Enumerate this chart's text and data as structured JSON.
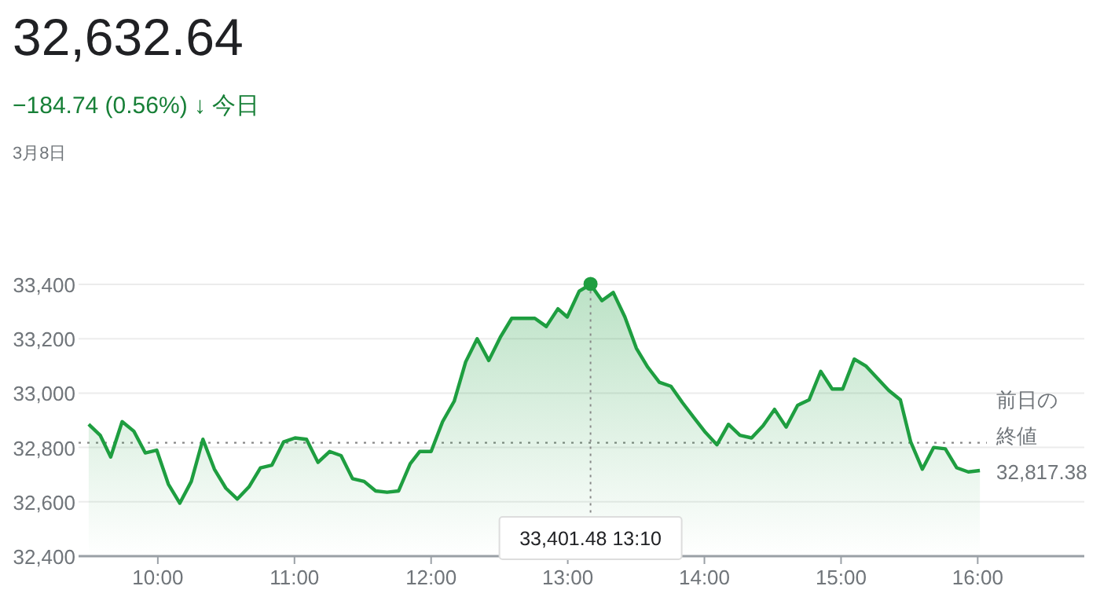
{
  "chart_data": {
    "type": "area",
    "title": "32,632.64",
    "subtitle": "−184.74 (0.56%) ↓ 今日",
    "annotations": [
      "3月8日",
      {
        "text": "33,401.48 13:10",
        "x": 13.1667,
        "y": 33401.48
      }
    ],
    "x": [
      9.494,
      9.578,
      9.655,
      9.739,
      9.824,
      9.908,
      9.992,
      10.077,
      10.161,
      10.245,
      10.33,
      10.414,
      10.498,
      10.582,
      10.667,
      10.751,
      10.835,
      10.92,
      11.004,
      11.088,
      11.172,
      11.257,
      11.341,
      11.425,
      11.51,
      11.594,
      11.678,
      11.762,
      11.847,
      11.916,
      12.0,
      12.084,
      12.169,
      12.253,
      12.337,
      12.422,
      12.506,
      12.59,
      12.759,
      12.843,
      12.928,
      12.996,
      13.084,
      13.1667,
      13.25,
      13.333,
      13.418,
      13.502,
      13.586,
      13.67,
      13.755,
      13.839,
      13.923,
      14.008,
      14.092,
      14.176,
      14.26,
      14.345,
      14.429,
      14.513,
      14.598,
      14.682,
      14.766,
      14.851,
      14.935,
      15.012,
      15.097,
      15.181,
      15.264,
      15.349,
      15.434,
      15.51,
      15.595,
      15.678,
      15.763,
      15.847,
      15.931,
      16.016
    ],
    "series": [
      {
        "color": "#1e9e40",
        "values": [
          32885,
          32845,
          32765,
          32895,
          32860,
          32780,
          32790,
          32665,
          32595,
          32675,
          32830,
          32720,
          32650,
          32610,
          32655,
          32725,
          32735,
          32820,
          32835,
          32830,
          32745,
          32785,
          32770,
          32685,
          32675,
          32640,
          32635,
          32640,
          32740,
          32785,
          32785,
          32895,
          32970,
          33115,
          33200,
          33120,
          33205,
          33275,
          33275,
          33245,
          33310,
          33280,
          33375,
          33400,
          33340,
          33370,
          33280,
          33165,
          33095,
          33040,
          33025,
          32965,
          32910,
          32855,
          32810,
          32885,
          32845,
          32835,
          32880,
          32940,
          32875,
          32955,
          32975,
          33080,
          33015,
          33015,
          33125,
          33100,
          33055,
          33010,
          32975,
          32820,
          32720,
          32800,
          32795,
          32725,
          32710,
          32715
        ]
      }
    ],
    "xlim": [
      9.42,
      16.78
    ],
    "xticks": [
      {
        "value": 10,
        "label": "10:00"
      },
      {
        "value": 11,
        "label": "11:00"
      },
      {
        "value": 12,
        "label": "12:00"
      },
      {
        "value": 13,
        "label": "13:00"
      },
      {
        "value": 14,
        "label": "14:00"
      },
      {
        "value": 15,
        "label": "15:00"
      },
      {
        "value": 16,
        "label": "16:00"
      }
    ],
    "ylim": [
      32400,
      33400
    ],
    "yticks": [
      {
        "value": 32400,
        "label": "32,400"
      },
      {
        "value": 32600,
        "label": "32,600"
      },
      {
        "value": 32800,
        "label": "32,800"
      },
      {
        "value": 33000,
        "label": "33,000"
      },
      {
        "value": 33200,
        "label": "33,200"
      },
      {
        "value": 33400,
        "label": "33,400"
      }
    ],
    "grid": "y",
    "ref_lines": [
      {
        "axis": "y",
        "value": 32817.38,
        "label": "前日の終値 32,817.38",
        "color": "#888888",
        "line_style": "dotted"
      }
    ]
  }
}
